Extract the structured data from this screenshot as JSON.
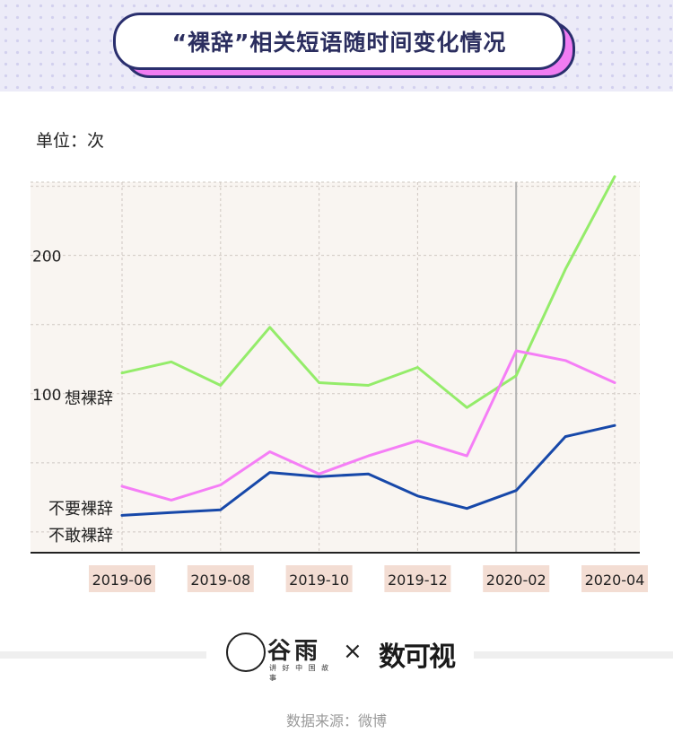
{
  "title": "“裸辞”相关短语随时间变化情况",
  "unit_label": "单位：次",
  "source": "数据来源：微博",
  "logos": {
    "partner_name": "谷雨",
    "partner_sub": "讲 好 中 国 故 事",
    "times": "×",
    "brand": "数可视"
  },
  "colors": {
    "plot_bg": "#f9f5f1",
    "grid": "#cfc8c2",
    "axis": "#222222",
    "tick_bg": "#f3ddd3",
    "marker": "#b3b3b3"
  },
  "chart_data": {
    "type": "line",
    "x": [
      "2019-06",
      "2019-07",
      "2019-08",
      "2019-09",
      "2019-10",
      "2019-11",
      "2019-12",
      "2020-01",
      "2020-02",
      "2020-03",
      "2020-04"
    ],
    "x_tick_labels": [
      "2019-06",
      "2019-08",
      "2019-10",
      "2019-12",
      "2020-02",
      "2020-04"
    ],
    "y_tick_labels": [
      "100",
      "200"
    ],
    "y_ticks": [
      100,
      200
    ],
    "ylim": [
      -15,
      253
    ],
    "grid": true,
    "vertical_marker_at": "2020-02",
    "series": [
      {
        "name": "想裸辞",
        "color": "#94ec6a",
        "values": [
          115,
          123,
          106,
          148,
          108,
          106,
          119,
          90,
          113,
          190,
          257
        ]
      },
      {
        "name": "不要裸辞",
        "color": "#f57ef6",
        "values": [
          33,
          23,
          34,
          58,
          42,
          55,
          66,
          55,
          131,
          124,
          108
        ]
      },
      {
        "name": "不敢裸辞",
        "color": "#1748a9",
        "values": [
          12,
          14,
          16,
          43,
          40,
          42,
          26,
          17,
          30,
          69,
          77
        ]
      }
    ]
  }
}
